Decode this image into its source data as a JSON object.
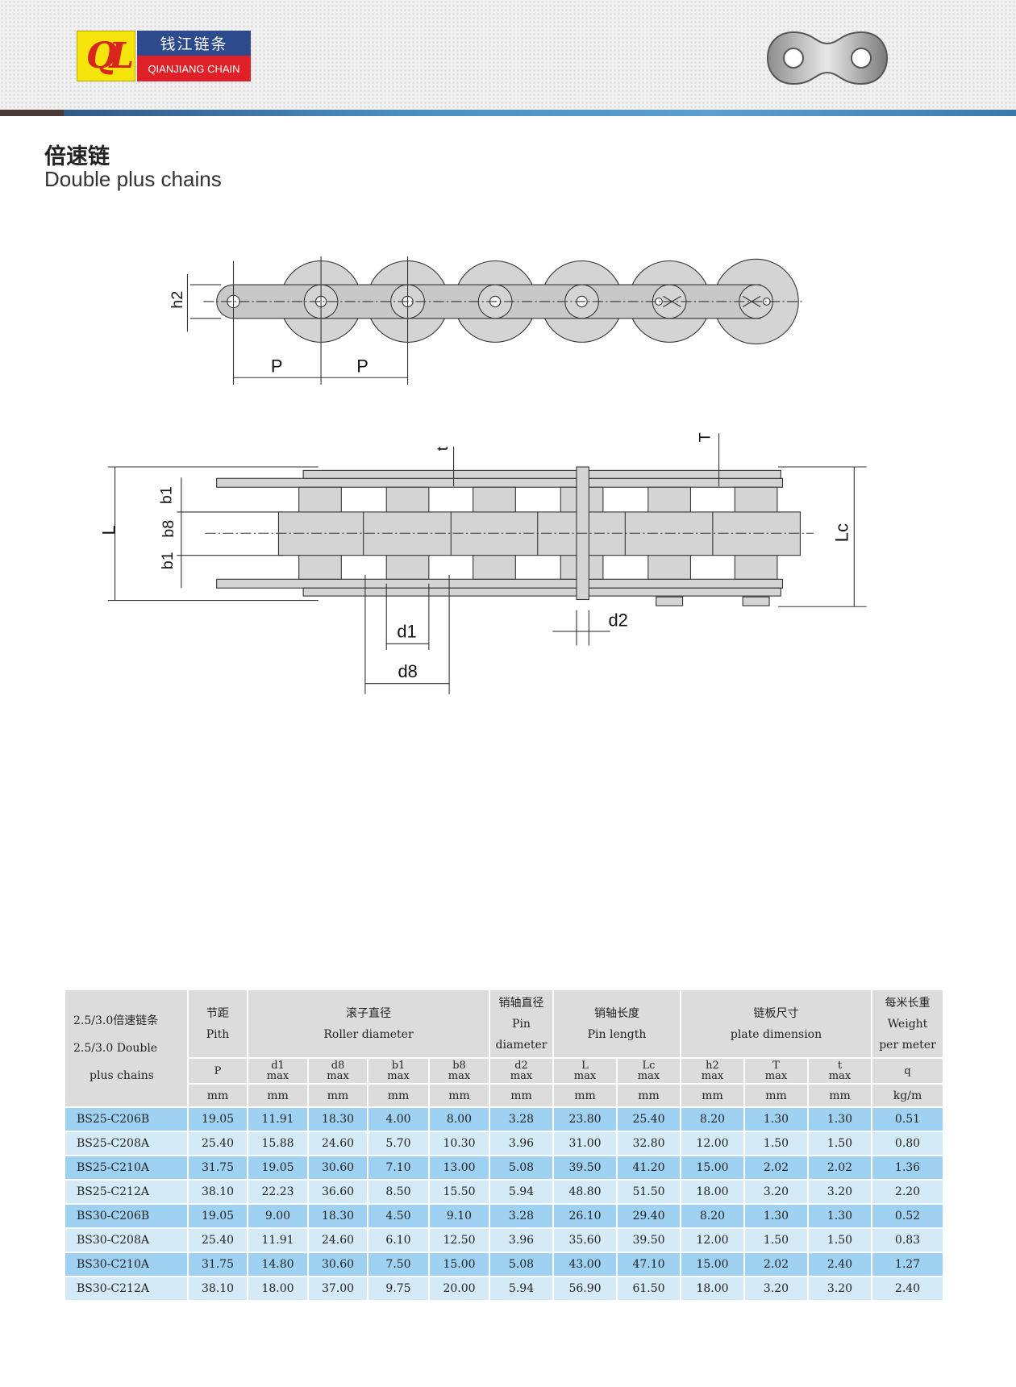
{
  "brand": {
    "logo_mark": "QL",
    "name_cn": "钱江链条",
    "name_en": "QIANJIANG CHAIN",
    "colors": {
      "yellow": "#f5e50c",
      "blue": "#2c4a8c",
      "red": "#e02028"
    }
  },
  "title": {
    "cn": "倍速链",
    "en": "Double plus chains"
  },
  "diagram": {
    "labels": {
      "h2": "h2",
      "P": "P",
      "t": "t",
      "T": "T",
      "L": "L",
      "Lc": "Lc",
      "b1": "b1",
      "b8": "b8",
      "d1": "d1",
      "d2": "d2",
      "d8": "d8"
    }
  },
  "table": {
    "corner": {
      "cn": "2.5/3.0倍速链条",
      "en1": "2.5/3.0 Double",
      "en2": "plus chains"
    },
    "groups": [
      {
        "cn": "节距",
        "en": "Pith"
      },
      {
        "cn": "滚子直径",
        "en": "Roller diameter"
      },
      {
        "cn": "销轴直径",
        "en": "Pin",
        "en2": "diameter"
      },
      {
        "cn": "销轴长度",
        "en": "Pin length"
      },
      {
        "cn": "链板尺寸",
        "en": "plate dimension"
      },
      {
        "cn": "每米长重",
        "en": "Weight",
        "en2": "per meter"
      }
    ],
    "symbols": [
      {
        "s": "P",
        "m": ""
      },
      {
        "s": "d1",
        "m": "max"
      },
      {
        "s": "d8",
        "m": "max"
      },
      {
        "s": "b1",
        "m": "max"
      },
      {
        "s": "b8",
        "m": "max"
      },
      {
        "s": "d2",
        "m": "max"
      },
      {
        "s": "L",
        "m": "max"
      },
      {
        "s": "Lc",
        "m": "max"
      },
      {
        "s": "h2",
        "m": "max"
      },
      {
        "s": "T",
        "m": "max"
      },
      {
        "s": "t",
        "m": "max"
      },
      {
        "s": "q",
        "m": ""
      }
    ],
    "units": [
      "mm",
      "mm",
      "mm",
      "mm",
      "mm",
      "mm",
      "mm",
      "mm",
      "mm",
      "mm",
      "mm",
      "kg/m"
    ],
    "rows": [
      [
        "BS25-C206B",
        "19.05",
        "11.91",
        "18.30",
        "4.00",
        "8.00",
        "3.28",
        "23.80",
        "25.40",
        "8.20",
        "1.30",
        "1.30",
        "0.51"
      ],
      [
        "BS25-C208A",
        "25.40",
        "15.88",
        "24.60",
        "5.70",
        "10.30",
        "3.96",
        "31.00",
        "32.80",
        "12.00",
        "1.50",
        "1.50",
        "0.80"
      ],
      [
        "BS25-C210A",
        "31.75",
        "19.05",
        "30.60",
        "7.10",
        "13.00",
        "5.08",
        "39.50",
        "41.20",
        "15.00",
        "2.02",
        "2.02",
        "1.36"
      ],
      [
        "BS25-C212A",
        "38.10",
        "22.23",
        "36.60",
        "8.50",
        "15.50",
        "5.94",
        "48.80",
        "51.50",
        "18.00",
        "3.20",
        "3.20",
        "2.20"
      ],
      [
        "BS30-C206B",
        "19.05",
        "9.00",
        "18.30",
        "4.50",
        "9.10",
        "3.28",
        "26.10",
        "29.40",
        "8.20",
        "1.30",
        "1.30",
        "0.52"
      ],
      [
        "BS30-C208A",
        "25.40",
        "11.91",
        "24.60",
        "6.10",
        "12.50",
        "3.96",
        "35.60",
        "39.50",
        "12.00",
        "1.50",
        "1.50",
        "0.83"
      ],
      [
        "BS30-C210A",
        "31.75",
        "14.80",
        "30.60",
        "7.50",
        "15.00",
        "5.08",
        "43.00",
        "47.10",
        "15.00",
        "2.02",
        "2.40",
        "1.27"
      ],
      [
        "BS30-C212A",
        "38.10",
        "18.00",
        "37.00",
        "9.75",
        "20.00",
        "5.94",
        "56.90",
        "61.50",
        "18.00",
        "3.20",
        "3.20",
        "2.40"
      ]
    ]
  }
}
